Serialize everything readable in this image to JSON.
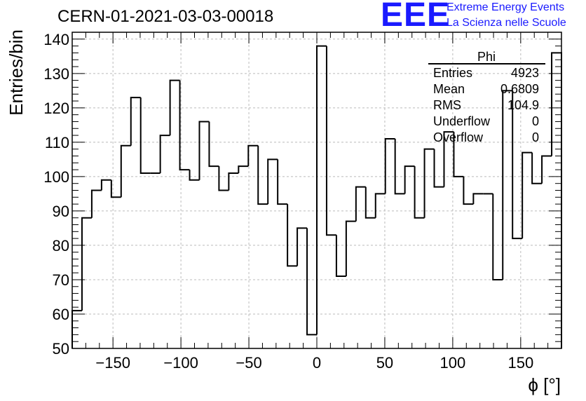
{
  "header": {
    "title": "CERN-01-2021-03-03-00018",
    "logo_text": "EEE",
    "logo_line1": "Extreme Energy Events",
    "logo_line2": "La Scienza nelle Scuole"
  },
  "colors": {
    "logo": "#1a1aff",
    "line": "#000000",
    "grid": "#bbbbbb"
  },
  "stats_box": {
    "name": "Phi",
    "rows": [
      {
        "label": "Entries",
        "value": "4923"
      },
      {
        "label": "Mean",
        "value": "0.6809"
      },
      {
        "label": "RMS",
        "value": "104.9"
      },
      {
        "label": "Underflow",
        "value": "0"
      },
      {
        "label": "Overflow",
        "value": "0"
      }
    ]
  },
  "chart_data": {
    "type": "histogram",
    "xlabel": "ϕ [°]",
    "ylabel": "Entries/bin",
    "xlim": [
      -180,
      180
    ],
    "ylim": [
      50,
      142
    ],
    "grid": true,
    "bin_width": 7.2,
    "x_ticks": [
      -150,
      -100,
      -50,
      0,
      50,
      100,
      150
    ],
    "x_tick_labels": [
      "−150",
      "−100",
      "−50",
      "0",
      "50",
      "100",
      "150"
    ],
    "y_ticks": [
      50,
      60,
      70,
      80,
      90,
      100,
      110,
      120,
      130,
      140
    ],
    "y_tick_labels": [
      "50",
      "60",
      "70",
      "80",
      "90",
      "100",
      "110",
      "120",
      "130",
      "140"
    ],
    "values": [
      61,
      88,
      96,
      99,
      94,
      109,
      123,
      101,
      101,
      112,
      128,
      102,
      99,
      116,
      103,
      96,
      101,
      103,
      109,
      92,
      105,
      92,
      74,
      85,
      54,
      138,
      83,
      71,
      87,
      97,
      88,
      95,
      111,
      95,
      103,
      88,
      108,
      97,
      113,
      100,
      92,
      95,
      95,
      70,
      125,
      82,
      107,
      98,
      106,
      136
    ]
  }
}
